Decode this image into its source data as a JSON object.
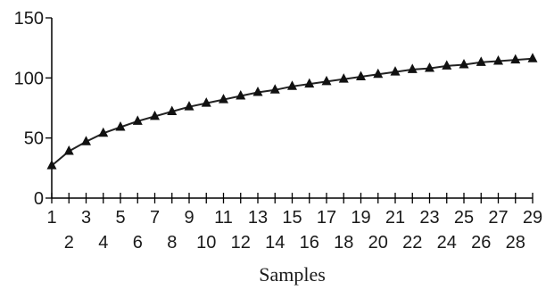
{
  "chart_data": {
    "type": "line",
    "title": "",
    "xlabel": "Samples",
    "ylabel": "",
    "x": [
      1,
      2,
      3,
      4,
      5,
      6,
      7,
      8,
      9,
      10,
      11,
      12,
      13,
      14,
      15,
      16,
      17,
      18,
      19,
      20,
      21,
      22,
      23,
      24,
      25,
      26,
      27,
      28,
      29
    ],
    "series": [
      {
        "name": "",
        "marker": "triangle",
        "values": [
          27,
          39,
          47,
          54,
          59,
          64,
          68,
          72,
          76,
          79,
          82,
          85,
          88,
          90,
          93,
          95,
          97,
          99,
          101,
          103,
          105,
          107,
          108,
          110,
          111,
          113,
          114,
          115,
          116
        ]
      }
    ],
    "xlim": [
      1,
      29
    ],
    "ylim": [
      0,
      150
    ],
    "yticks": [
      0,
      50,
      100,
      150
    ],
    "ytick_labels": [
      "0",
      "50",
      "100",
      "150"
    ],
    "xtick_labels_top": [
      "1",
      "3",
      "5",
      "7",
      "9",
      "11",
      "13",
      "15",
      "17",
      "19",
      "21",
      "23",
      "25",
      "27",
      "29"
    ],
    "xtick_labels_bottom": [
      "2",
      "4",
      "6",
      "8",
      "10",
      "12",
      "14",
      "16",
      "18",
      "20",
      "22",
      "24",
      "26",
      "28"
    ],
    "grid": false,
    "line_color": "#222222",
    "marker_color": "#111111"
  }
}
